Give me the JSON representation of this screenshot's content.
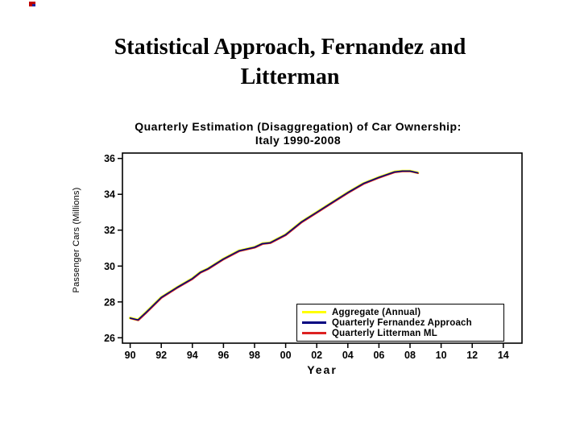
{
  "slide": {
    "title_line1": "Statistical Approach, Fernandez and",
    "title_line2": "Litterman"
  },
  "chart_data": {
    "type": "line",
    "title_line1": "Quarterly Estimation (Disaggregation) of Car Ownership:",
    "title_line2": "Italy 1990-2008",
    "xlabel": "Year",
    "ylabel": "Passenger Cars (Millions)",
    "xlim": [
      1989.5,
      2015.2
    ],
    "ylim": [
      25.7,
      36.3
    ],
    "grid": false,
    "legend_position": "bottom-right",
    "x_ticks": {
      "values": [
        1990,
        1992,
        1994,
        1996,
        1998,
        2000,
        2002,
        2004,
        2006,
        2008,
        2010,
        2012,
        2014
      ],
      "labels": [
        "90",
        "92",
        "94",
        "96",
        "98",
        "00",
        "02",
        "04",
        "06",
        "08",
        "10",
        "12",
        "14"
      ]
    },
    "y_ticks": {
      "values": [
        26,
        28,
        30,
        32,
        34,
        36
      ],
      "labels": [
        "26",
        "28",
        "30",
        "32",
        "34",
        "36"
      ]
    },
    "x": [
      1990,
      1990.5,
      1991,
      1992,
      1993,
      1994,
      1994.5,
      1995,
      1996,
      1997,
      1998,
      1998.5,
      1999,
      2000,
      2000.5,
      2001,
      2002,
      2003,
      2004,
      2005,
      2006,
      2006.5,
      2007,
      2007.5,
      2008,
      2008.5
    ],
    "series": [
      {
        "name": "Aggregate (Annual)",
        "color": "#ffff00",
        "values": [
          27.1,
          27.0,
          27.4,
          28.25,
          28.8,
          29.3,
          29.65,
          29.85,
          30.4,
          30.85,
          31.05,
          31.25,
          31.3,
          31.75,
          32.1,
          32.45,
          33.0,
          33.55,
          34.1,
          34.6,
          34.95,
          35.1,
          35.25,
          35.3,
          35.3,
          35.2
        ]
      },
      {
        "name": "Quarterly Fernandez Approach",
        "color": "#000080",
        "values": [
          27.1,
          27.0,
          27.4,
          28.25,
          28.8,
          29.3,
          29.65,
          29.85,
          30.4,
          30.85,
          31.05,
          31.25,
          31.3,
          31.75,
          32.1,
          32.45,
          33.0,
          33.55,
          34.1,
          34.6,
          34.95,
          35.1,
          35.25,
          35.3,
          35.3,
          35.2
        ]
      },
      {
        "name": "Quarterly Litterman ML",
        "color": "#dd2222",
        "values": [
          27.1,
          27.0,
          27.4,
          28.25,
          28.8,
          29.3,
          29.65,
          29.85,
          30.4,
          30.85,
          31.05,
          31.25,
          31.3,
          31.75,
          32.1,
          32.45,
          33.0,
          33.55,
          34.1,
          34.6,
          34.95,
          35.1,
          35.25,
          35.3,
          35.3,
          35.2
        ]
      }
    ]
  }
}
